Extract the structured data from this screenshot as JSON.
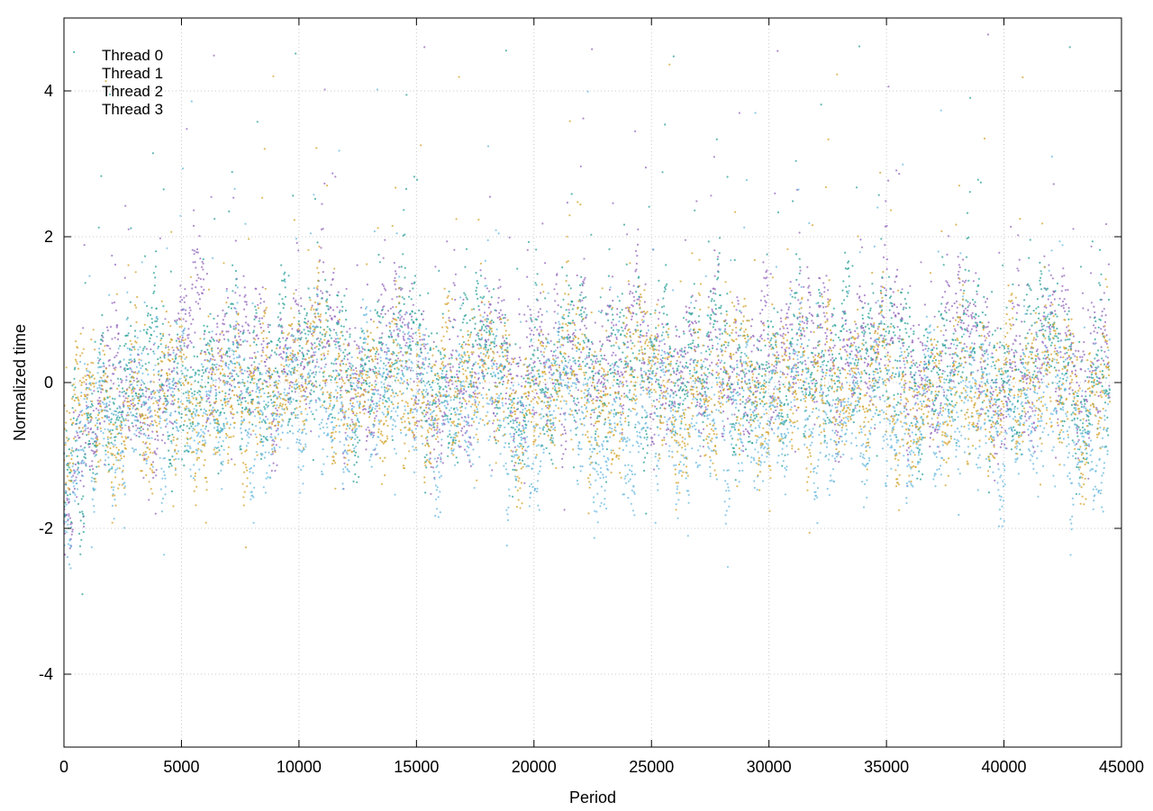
{
  "chart_data": {
    "type": "scatter",
    "title": "",
    "xlabel": "Period",
    "ylabel": "Normalized time",
    "xlim": [
      0,
      45000
    ],
    "ylim": [
      -5,
      5
    ],
    "xticks": [
      0,
      5000,
      10000,
      15000,
      20000,
      25000,
      30000,
      35000,
      40000,
      45000
    ],
    "yticks": [
      -4,
      -2,
      0,
      2,
      4
    ],
    "grid": true,
    "legend_position": "top-left",
    "series": [
      {
        "name": "Thread 0",
        "color": "#9467bd",
        "x": [
          0,
          1000,
          2000,
          3000,
          5000,
          7500,
          10000,
          12500,
          15000,
          17500,
          20000,
          22500,
          25000,
          27500,
          30000,
          32500,
          35000,
          37500,
          40000,
          42500,
          44500
        ],
        "y": [
          -1.4,
          -0.9,
          -0.3,
          0.0,
          0.1,
          0.2,
          0.3,
          0.2,
          0.1,
          0.1,
          0.2,
          0.3,
          0.3,
          0.3,
          0.2,
          0.4,
          0.3,
          0.2,
          0.3,
          0.3,
          0.2
        ]
      },
      {
        "name": "Thread 1",
        "color": "#2aa198",
        "x": [
          0,
          1000,
          2000,
          3000,
          5000,
          7500,
          10000,
          12500,
          15000,
          17500,
          20000,
          22500,
          25000,
          27500,
          30000,
          32500,
          35000,
          37500,
          40000,
          42500,
          44500
        ],
        "y": [
          -1.3,
          -0.8,
          -0.3,
          0.0,
          0.0,
          0.1,
          0.2,
          0.1,
          0.2,
          0.0,
          0.1,
          0.2,
          0.2,
          0.2,
          0.1,
          0.4,
          0.2,
          0.1,
          0.2,
          0.1,
          0.1
        ]
      },
      {
        "name": "Thread 2",
        "color": "#6ab9e0",
        "x": [
          0,
          1000,
          2000,
          3000,
          5000,
          7500,
          10000,
          12500,
          15000,
          17500,
          20000,
          22500,
          25000,
          27500,
          30000,
          32500,
          35000,
          37500,
          40000,
          42500,
          44500
        ],
        "y": [
          -1.5,
          -1.0,
          -0.6,
          -0.3,
          -0.4,
          -0.5,
          -0.2,
          -0.3,
          -0.3,
          -0.5,
          -0.6,
          -0.5,
          -0.6,
          -0.5,
          -0.6,
          -0.4,
          -0.4,
          -0.6,
          -0.5,
          -0.7,
          -0.6
        ]
      },
      {
        "name": "Thread 3",
        "color": "#d4a42c",
        "x": [
          0,
          1000,
          2000,
          3000,
          5000,
          7500,
          10000,
          12500,
          15000,
          17500,
          20000,
          22500,
          25000,
          27500,
          30000,
          32500,
          35000,
          37500,
          40000,
          42500,
          44500
        ],
        "y": [
          -1.2,
          -0.6,
          -0.3,
          -0.2,
          -0.4,
          -0.3,
          0.1,
          0.0,
          -0.2,
          -0.1,
          -0.3,
          -0.1,
          -0.2,
          0.0,
          -0.2,
          0.0,
          -0.3,
          -0.1,
          -0.1,
          -0.2,
          -0.2
        ]
      }
    ]
  }
}
